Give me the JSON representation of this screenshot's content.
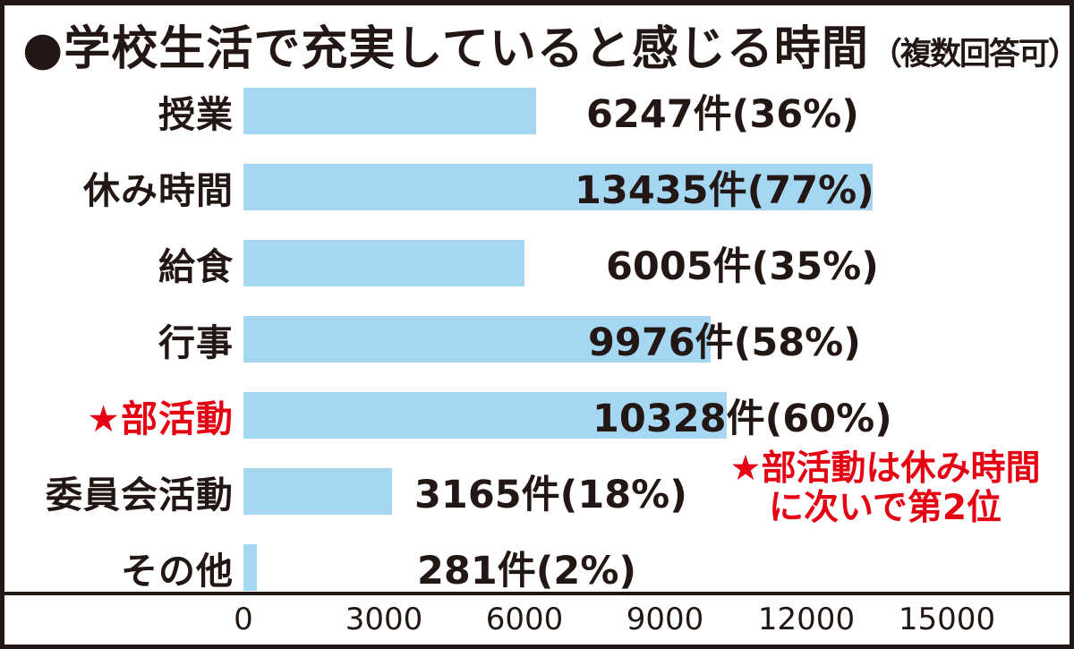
{
  "title": {
    "bullet_and_main": "●学校生活で充実していると感じる時間",
    "note": "（複数回答可）"
  },
  "chart_data": {
    "type": "bar",
    "orientation": "horizontal",
    "title": "学校生活で充実していると感じる時間（複数回答可）",
    "unit": "件",
    "xlim": [
      0,
      15000
    ],
    "x_ticks": [
      0,
      3000,
      6000,
      9000,
      12000,
      15000
    ],
    "x_tick_labels": [
      "0",
      "3000",
      "6000",
      "9000",
      "12000",
      "15000"
    ],
    "grid": false,
    "bar_color": "#A5D7F2",
    "text_color": "#221714",
    "highlight_color": "#E50012",
    "categories": [
      "授業",
      "休み時間",
      "給食",
      "行事",
      "★部活動",
      "委員会活動",
      "その他"
    ],
    "values": [
      6247,
      13435,
      6005,
      9976,
      10328,
      3165,
      281
    ],
    "percents": [
      36,
      77,
      35,
      58,
      60,
      18,
      2
    ],
    "rows": [
      {
        "label": "授業",
        "value": 6247,
        "percent": 36,
        "value_label": "6247件(36%)",
        "emphasis": "normal"
      },
      {
        "label": "休み時間",
        "value": 13435,
        "percent": 77,
        "value_label": "13435件(77%)",
        "emphasis": "bold"
      },
      {
        "label": "給食",
        "value": 6005,
        "percent": 35,
        "value_label": "6005件(35%)",
        "emphasis": "normal"
      },
      {
        "label": "行事",
        "value": 9976,
        "percent": 58,
        "value_label": "9976件(58%)",
        "emphasis": "normal"
      },
      {
        "label": "★部活動",
        "value": 10328,
        "percent": 60,
        "value_label": "10328件(60%)",
        "emphasis": "highlight"
      },
      {
        "label": "委員会活動",
        "value": 3165,
        "percent": 18,
        "value_label": "3165件(18%)",
        "emphasis": "normal"
      },
      {
        "label": "その他",
        "value": 281,
        "percent": 2,
        "value_label": "281件(2%)",
        "emphasis": "normal"
      }
    ],
    "annotation": {
      "line1": "★部活動は休み時間",
      "line2": "に次いで第2位"
    }
  }
}
